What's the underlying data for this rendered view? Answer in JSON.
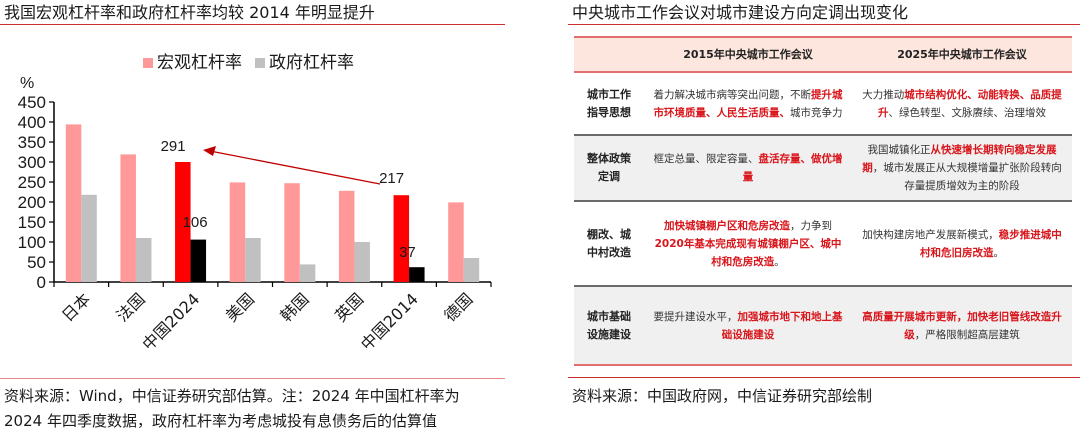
{
  "left_panel": {
    "title": "我国宏观杠杆率和政府杠杆率均较 2014 年明显提升",
    "source_line1": "资料来源：Wind，中信证券研究部估算。注：2024 年中国杠杆率为",
    "source_line2": "2024 年四季度数据，政府杠杆率为考虑城投有息债务后的估算值"
  },
  "right_panel": {
    "title": "中央城市工作会议对城市建设方向定调出现变化",
    "source": "资料来源：中国政府网，中信证券研究部绘制",
    "table": {
      "headers": [
        "",
        "2015年中央城市工作会议",
        "2025年中央城市工作会议"
      ],
      "rows": [
        {
          "label": "城市工作指导思想",
          "col2015": [
            {
              "t": "着力解决城市病等突出问题，不断",
              "hl": false
            },
            {
              "t": "提升城市环境质量、人民生活质量、",
              "hl": true
            },
            {
              "t": "城市竞争力",
              "hl": false
            }
          ],
          "col2025": [
            {
              "t": "大力推动",
              "hl": false
            },
            {
              "t": "城市结构优化、动能转换、品质提升",
              "hl": true
            },
            {
              "t": "、绿色转型、文脉赓续、治理增效",
              "hl": false
            }
          ]
        },
        {
          "label": "整体政策定调",
          "col2015": [
            {
              "t": "框定总量、限定容量、",
              "hl": false
            },
            {
              "t": "盘活存量、做优增量",
              "hl": true
            }
          ],
          "col2025": [
            {
              "t": "我国城镇化正",
              "hl": false
            },
            {
              "t": "从快速增长期转向稳定发展期",
              "hl": true
            },
            {
              "t": "，城市发展正从大规模增量扩张阶段转向存量提质增效为主的阶段",
              "hl": false
            }
          ]
        },
        {
          "label": "棚改、城中村改造",
          "col2015": [
            {
              "t": "加快城镇棚户区和危房改造",
              "hl": true
            },
            {
              "t": "，力争到",
              "hl": false
            },
            {
              "t": "2020年基本完成现有城镇棚户区、城中村和危房改造",
              "hl": true
            },
            {
              "t": "。",
              "hl": false
            }
          ],
          "col2025": [
            {
              "t": "加快构建房地产发展新模式，",
              "hl": false
            },
            {
              "t": "稳步推进城中村和危旧房改造",
              "hl": true
            },
            {
              "t": "。",
              "hl": false
            }
          ]
        },
        {
          "label": "城市基础设施建设",
          "col2015": [
            {
              "t": "要提升建设水平，",
              "hl": false
            },
            {
              "t": "加强城市地下和地上基础设施建设",
              "hl": true
            }
          ],
          "col2025": [
            {
              "t": "高质量开展城市更新，加快老旧管线改造升级",
              "hl": true
            },
            {
              "t": "，严格限制超高层建筑",
              "hl": false
            }
          ]
        }
      ]
    }
  },
  "chart_data": {
    "type": "bar",
    "title": "我国宏观杠杆率和政府杠杆率均较 2014 年明显提升",
    "xlabel": "",
    "ylabel": "%",
    "ylim": [
      0,
      450
    ],
    "yticks": [
      0,
      50,
      100,
      150,
      200,
      250,
      300,
      350,
      400,
      450
    ],
    "grid": false,
    "legend_position": "top",
    "categories": [
      "日本",
      "法国",
      "中国2024",
      "美国",
      "韩国",
      "英国",
      "中国2014",
      "德国"
    ],
    "series": [
      {
        "name": "宏观杠杆率",
        "color": "#ff9999",
        "values": [
          394,
          319,
          291,
          249,
          247,
          228,
          217,
          199
        ]
      },
      {
        "name": "政府杠杆率",
        "color": "#c0c0c0",
        "values": [
          218,
          110,
          106,
          110,
          44,
          100,
          37,
          60
        ]
      }
    ],
    "highlight": {
      "categories": [
        "中国2024",
        "中国2014"
      ],
      "macro_color": "#ff0000",
      "gov_color": "#000000"
    },
    "annotations": [
      {
        "text": "291",
        "category": "中国2024",
        "series": "宏观杠杆率"
      },
      {
        "text": "106",
        "category": "中国2024",
        "series": "政府杠杆率"
      },
      {
        "text": "217",
        "category": "中国2014",
        "series": "宏观杠杆率"
      },
      {
        "text": "37",
        "category": "中国2014",
        "series": "政府杠杆率"
      },
      {
        "type": "arrow",
        "from": "中国2014 宏观杠杆率 217",
        "to": "中国2024 宏观杠杆率 291",
        "color": "#c00000"
      }
    ]
  }
}
